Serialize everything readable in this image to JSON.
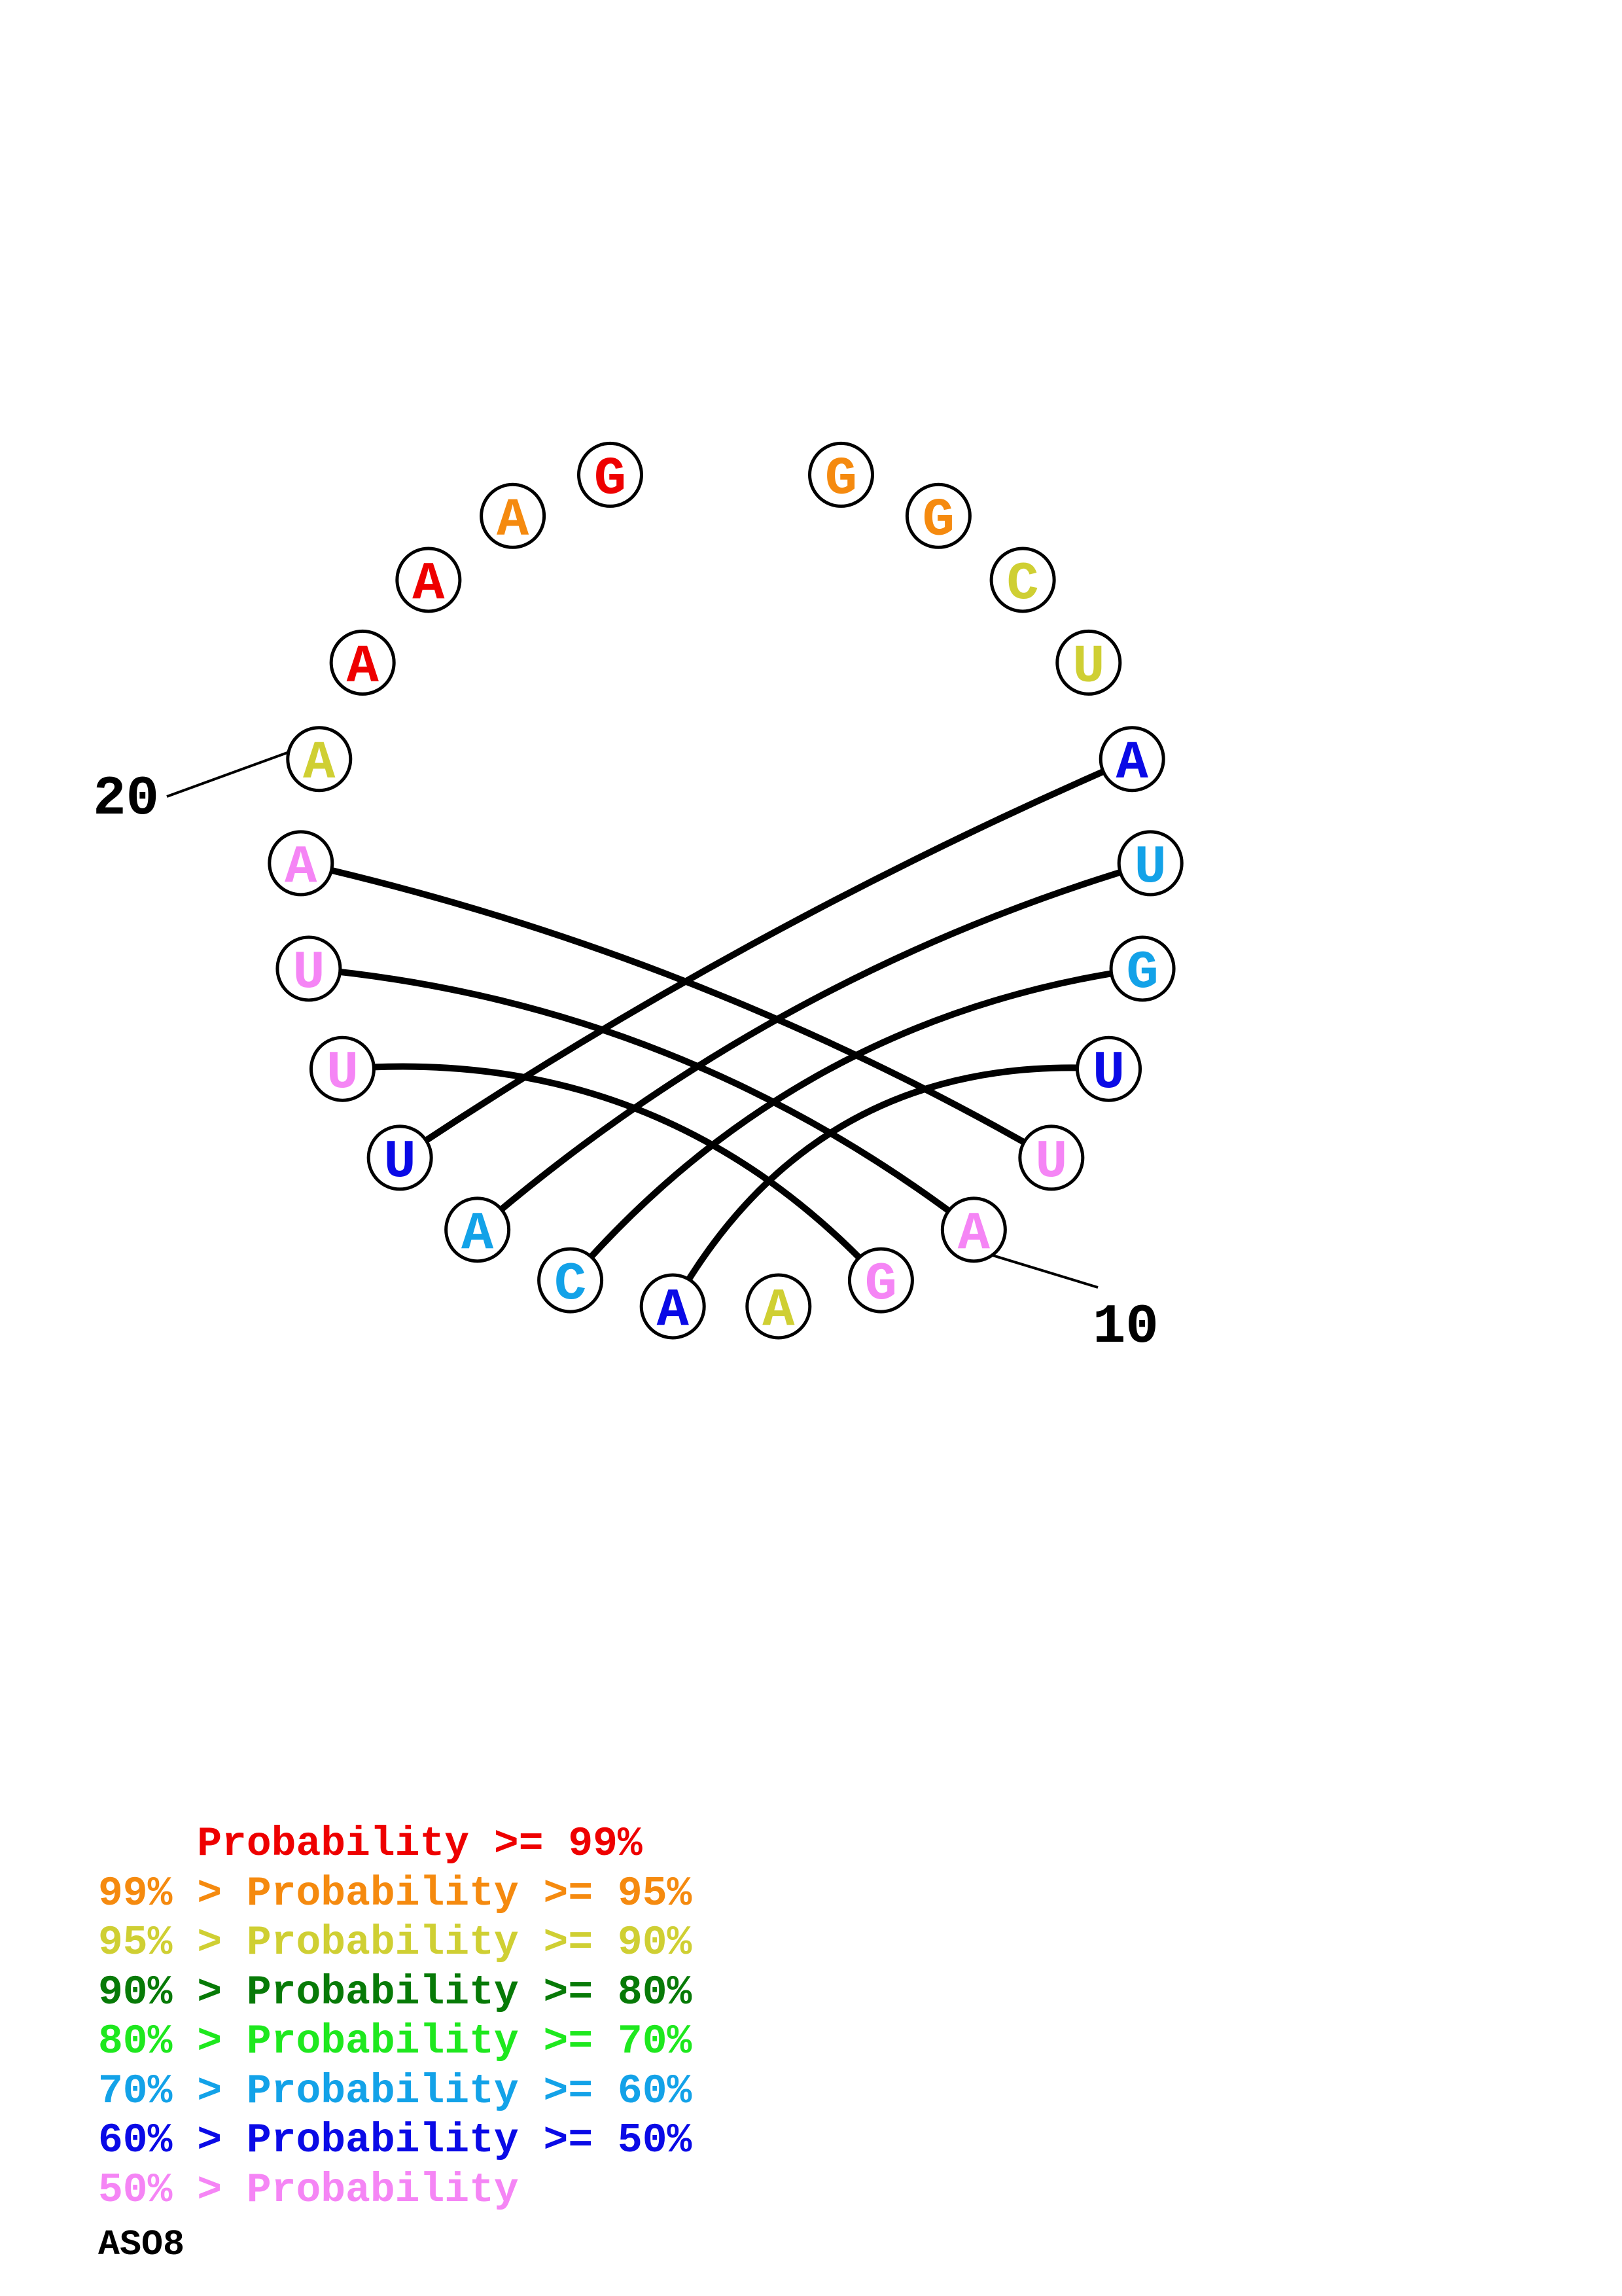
{
  "colors": {
    "red": "#ee0000",
    "orange": "#f58a0f",
    "yellow": "#cfcf33",
    "darkgreen": "#077a07",
    "green": "#1ee81e",
    "cyan": "#13a2e8",
    "blue": "#0a0ae6",
    "pink": "#f585f5",
    "line": "#000000"
  },
  "nucleotides": [
    {
      "pos": 1,
      "base": "G",
      "color": "orange"
    },
    {
      "pos": 2,
      "base": "G",
      "color": "orange"
    },
    {
      "pos": 3,
      "base": "C",
      "color": "yellow"
    },
    {
      "pos": 4,
      "base": "U",
      "color": "yellow"
    },
    {
      "pos": 5,
      "base": "A",
      "color": "blue"
    },
    {
      "pos": 6,
      "base": "U",
      "color": "cyan"
    },
    {
      "pos": 7,
      "base": "G",
      "color": "cyan"
    },
    {
      "pos": 8,
      "base": "U",
      "color": "blue"
    },
    {
      "pos": 9,
      "base": "U",
      "color": "pink"
    },
    {
      "pos": 10,
      "base": "A",
      "color": "pink"
    },
    {
      "pos": 11,
      "base": "G",
      "color": "pink"
    },
    {
      "pos": 12,
      "base": "A",
      "color": "yellow"
    },
    {
      "pos": 13,
      "base": "A",
      "color": "blue"
    },
    {
      "pos": 14,
      "base": "C",
      "color": "cyan"
    },
    {
      "pos": 15,
      "base": "A",
      "color": "cyan"
    },
    {
      "pos": 16,
      "base": "U",
      "color": "blue"
    },
    {
      "pos": 17,
      "base": "U",
      "color": "pink"
    },
    {
      "pos": 18,
      "base": "U",
      "color": "pink"
    },
    {
      "pos": 19,
      "base": "A",
      "color": "pink"
    },
    {
      "pos": 20,
      "base": "A",
      "color": "yellow"
    },
    {
      "pos": 21,
      "base": "A",
      "color": "red"
    },
    {
      "pos": 22,
      "base": "A",
      "color": "red"
    },
    {
      "pos": 23,
      "base": "A",
      "color": "orange"
    },
    {
      "pos": 24,
      "base": "G",
      "color": "red"
    }
  ],
  "pairs": [
    [
      5,
      16
    ],
    [
      6,
      15
    ],
    [
      7,
      14
    ],
    [
      8,
      13
    ],
    [
      9,
      19
    ],
    [
      10,
      18
    ],
    [
      11,
      17
    ]
  ],
  "position_labels": [
    {
      "text": "20",
      "pos": 20
    },
    {
      "text": "10",
      "pos": 10
    }
  ],
  "legend": [
    {
      "prefix": "    ",
      "mid": "Probability",
      "suffix": " >= 99%",
      "color": "red"
    },
    {
      "prefix": "99% > ",
      "mid": "Probability",
      "suffix": " >= 95%",
      "color": "orange"
    },
    {
      "prefix": "95% > ",
      "mid": "Probability",
      "suffix": " >= 90%",
      "color": "yellow"
    },
    {
      "prefix": "90% > ",
      "mid": "Probability",
      "suffix": " >= 80%",
      "color": "darkgreen"
    },
    {
      "prefix": "80% > ",
      "mid": "Probability",
      "suffix": " >= 70%",
      "color": "green"
    },
    {
      "prefix": "70% > ",
      "mid": "Probability",
      "suffix": " >= 60%",
      "color": "cyan"
    },
    {
      "prefix": "60% > ",
      "mid": "Probability",
      "suffix": " >= 50%",
      "color": "blue"
    },
    {
      "prefix": "50% > ",
      "mid": "Probability",
      "suffix": "",
      "color": "pink"
    }
  ],
  "caption": "ASO8"
}
